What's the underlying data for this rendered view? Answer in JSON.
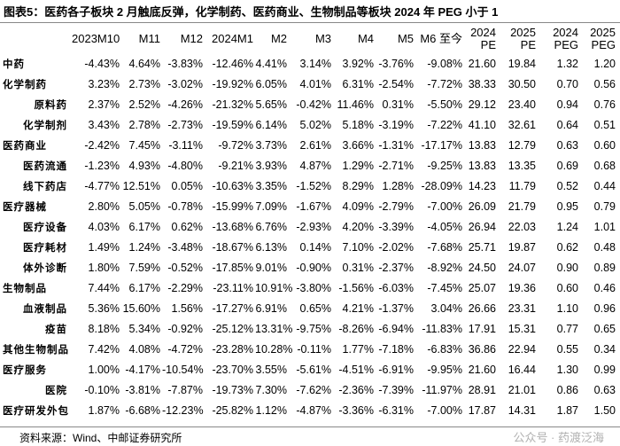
{
  "title": "图表5：医药各子板块 2 月触底反弹，化学制药、医药商业、生物制品等板块 2024 年 PEG 小于 1",
  "table": {
    "header": [
      "2023M10",
      "M11",
      "M12",
      "2024M1",
      "M2",
      "M3",
      "M4",
      "M5",
      "M6 至今",
      "2024 PE",
      "2025 PE",
      "2024 PEG",
      "2025 PEG"
    ],
    "rows": [
      [
        "中药",
        "-4.43%",
        "4.64%",
        "-3.83%",
        "-12.46%",
        "4.41%",
        "3.14%",
        "3.92%",
        "-3.76%",
        "-9.08%",
        "21.60",
        "19.84",
        "1.32",
        "1.20"
      ],
      [
        "化学制药",
        "3.23%",
        "2.73%",
        "-3.02%",
        "-19.92%",
        "6.05%",
        "4.01%",
        "6.31%",
        "-2.54%",
        "-7.72%",
        "38.33",
        "30.50",
        "0.70",
        "0.56"
      ],
      [
        "原料药",
        "2.37%",
        "2.52%",
        "-4.26%",
        "-21.32%",
        "5.65%",
        "-0.42%",
        "11.46%",
        "0.31%",
        "-5.50%",
        "29.12",
        "23.40",
        "0.94",
        "0.76"
      ],
      [
        "化学制剂",
        "3.43%",
        "2.78%",
        "-2.73%",
        "-19.59%",
        "6.14%",
        "5.02%",
        "5.18%",
        "-3.19%",
        "-7.22%",
        "41.10",
        "32.61",
        "0.64",
        "0.51"
      ],
      [
        "医药商业",
        "-2.42%",
        "7.45%",
        "-3.11%",
        "-9.72%",
        "3.73%",
        "2.61%",
        "3.66%",
        "-1.31%",
        "-17.17%",
        "13.83",
        "12.79",
        "0.63",
        "0.60"
      ],
      [
        "医药流通",
        "-1.23%",
        "4.93%",
        "-4.80%",
        "-9.21%",
        "3.93%",
        "4.87%",
        "1.29%",
        "-2.71%",
        "-9.25%",
        "13.83",
        "13.35",
        "0.69",
        "0.68"
      ],
      [
        "线下药店",
        "-4.77%",
        "12.51%",
        "0.05%",
        "-10.63%",
        "3.35%",
        "-1.52%",
        "8.29%",
        "1.28%",
        "-28.09%",
        "14.23",
        "11.79",
        "0.52",
        "0.44"
      ],
      [
        "医疗器械",
        "2.80%",
        "5.05%",
        "-0.78%",
        "-15.99%",
        "7.09%",
        "-1.67%",
        "4.09%",
        "-2.79%",
        "-7.00%",
        "26.09",
        "21.79",
        "0.95",
        "0.79"
      ],
      [
        "医疗设备",
        "4.03%",
        "6.17%",
        "0.62%",
        "-13.68%",
        "6.76%",
        "-2.93%",
        "4.20%",
        "-3.39%",
        "-4.05%",
        "26.94",
        "22.03",
        "1.24",
        "1.01"
      ],
      [
        "医疗耗材",
        "1.49%",
        "1.24%",
        "-3.48%",
        "-18.67%",
        "6.13%",
        "0.14%",
        "7.10%",
        "-2.02%",
        "-7.68%",
        "25.71",
        "19.87",
        "0.62",
        "0.48"
      ],
      [
        "体外诊断",
        "1.80%",
        "7.59%",
        "-0.52%",
        "-17.85%",
        "9.01%",
        "-0.90%",
        "0.31%",
        "-2.37%",
        "-8.92%",
        "24.50",
        "24.07",
        "0.90",
        "0.89"
      ],
      [
        "生物制品",
        "7.44%",
        "6.17%",
        "-2.29%",
        "-23.11%",
        "10.91%",
        "-3.80%",
        "-1.56%",
        "-6.03%",
        "-7.45%",
        "25.07",
        "19.36",
        "0.60",
        "0.46"
      ],
      [
        "血液制品",
        "5.36%",
        "15.60%",
        "1.56%",
        "-17.27%",
        "6.91%",
        "0.65%",
        "4.21%",
        "-1.37%",
        "3.04%",
        "26.66",
        "23.31",
        "1.10",
        "0.96"
      ],
      [
        "疫苗",
        "8.18%",
        "5.34%",
        "-0.92%",
        "-25.12%",
        "13.31%",
        "-9.75%",
        "-8.26%",
        "-6.94%",
        "-11.83%",
        "17.91",
        "15.31",
        "0.77",
        "0.65"
      ],
      [
        "其他生物制品",
        "7.42%",
        "4.08%",
        "-4.72%",
        "-23.28%",
        "10.28%",
        "-0.11%",
        "1.77%",
        "-7.18%",
        "-6.83%",
        "36.86",
        "22.94",
        "0.55",
        "0.34"
      ],
      [
        "医疗服务",
        "1.00%",
        "-4.17%",
        "-10.54%",
        "-23.70%",
        "3.55%",
        "-5.61%",
        "-4.51%",
        "-6.91%",
        "-9.95%",
        "21.60",
        "16.44",
        "1.30",
        "0.99"
      ],
      [
        "医院",
        "-0.10%",
        "-3.81%",
        "-7.87%",
        "-19.73%",
        "7.30%",
        "-7.62%",
        "-2.36%",
        "-7.39%",
        "-11.97%",
        "28.91",
        "21.01",
        "0.86",
        "0.63"
      ],
      [
        "医疗研发外包",
        "1.87%",
        "-6.68%",
        "-12.23%",
        "-25.82%",
        "1.12%",
        "-4.87%",
        "-3.36%",
        "-6.31%",
        "-7.00%",
        "17.87",
        "14.31",
        "1.87",
        "1.50"
      ]
    ]
  },
  "source": "资料来源：Wind、中邮证券研究所",
  "watermark": "公众号 · 药渡泛海"
}
